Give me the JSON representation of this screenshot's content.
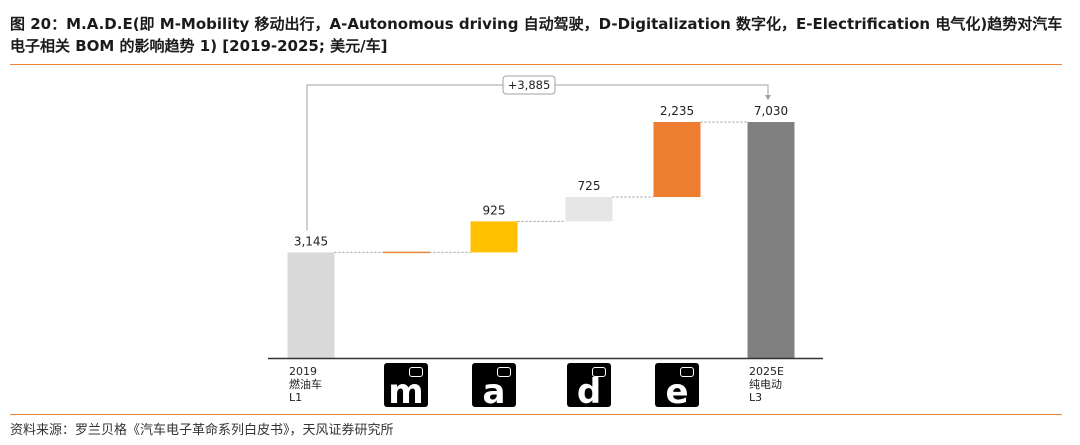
{
  "header": {
    "title": "图 20：M.A.D.E(即 M-Mobility 移动出行，A-Autonomous driving 自动驾驶，D-Digitalization 数字化，E-Electrification 电气化)趋势对汽车电子相关 BOM 的影响趋势 1) [2019-2025; 美元/车]"
  },
  "footer": {
    "source": "资料来源：罗兰贝格《汽车电子革命系列白皮书》，天风证券研究所"
  },
  "icons": [
    {
      "name": "mobility-icon",
      "letter": "m"
    },
    {
      "name": "autonomous-icon",
      "letter": "a"
    },
    {
      "name": "digitalization-icon",
      "letter": "d"
    },
    {
      "name": "electrification-icon",
      "letter": "e"
    }
  ],
  "chart_data": {
    "type": "bar",
    "subtype": "waterfall",
    "categories": [
      [
        "2019",
        "燃油车",
        "L1"
      ],
      [
        "M"
      ],
      [
        "A"
      ],
      [
        "D"
      ],
      [
        "E"
      ],
      [
        "2025E",
        "纯电动",
        "L3"
      ]
    ],
    "values": [
      3145,
      0,
      925,
      725,
      2235,
      7030
    ],
    "value_labels": [
      "3,145",
      "",
      "925",
      "725",
      "2,235",
      "7,030"
    ],
    "bar_kinds": [
      "total",
      "delta",
      "delta",
      "delta",
      "delta",
      "total"
    ],
    "colors": [
      "#d9d9d9",
      "#e8863b",
      "#ffc000",
      "#e6e6e6",
      "#ed7d31",
      "#808080"
    ],
    "annotation": "+3,885",
    "ylim": [
      0,
      7500
    ],
    "grid": false
  }
}
